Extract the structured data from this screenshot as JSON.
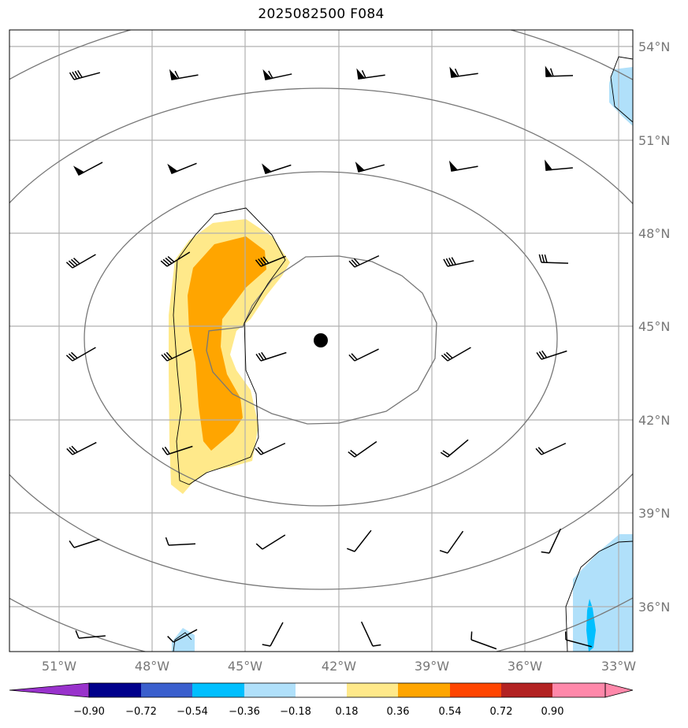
{
  "title": "2025082500 F084",
  "map": {
    "lon_labels": [
      "51°W",
      "48°W",
      "45°W",
      "42°W",
      "39°W",
      "36°W",
      "33°W"
    ],
    "lat_labels": [
      "54°N",
      "51°N",
      "48°N",
      "45°N",
      "42°N",
      "39°N",
      "36°N"
    ],
    "gridline_color": "#b0b0b0",
    "contour_color": "#777777",
    "center_marker": "storm-center-dot"
  },
  "colorbar": {
    "tick_labels": [
      "−0.90",
      "−0.72",
      "−0.54",
      "−0.36",
      "−0.18",
      "0.18",
      "0.36",
      "0.54",
      "0.72",
      "0.90"
    ],
    "colors": [
      "#9932cc",
      "#00008b",
      "#3a5fcd",
      "#00bfff",
      "#b0e0fa",
      "#ffffff",
      "#ffe98a",
      "#ffa500",
      "#ff4500",
      "#b22222",
      "#ff88aa",
      "#ff88aa"
    ]
  },
  "colors": {
    "light_yellow": "#ffe98a",
    "orange": "#ffa500",
    "light_blue": "#b0e0fa",
    "deep_sky_blue": "#00bfff"
  }
}
